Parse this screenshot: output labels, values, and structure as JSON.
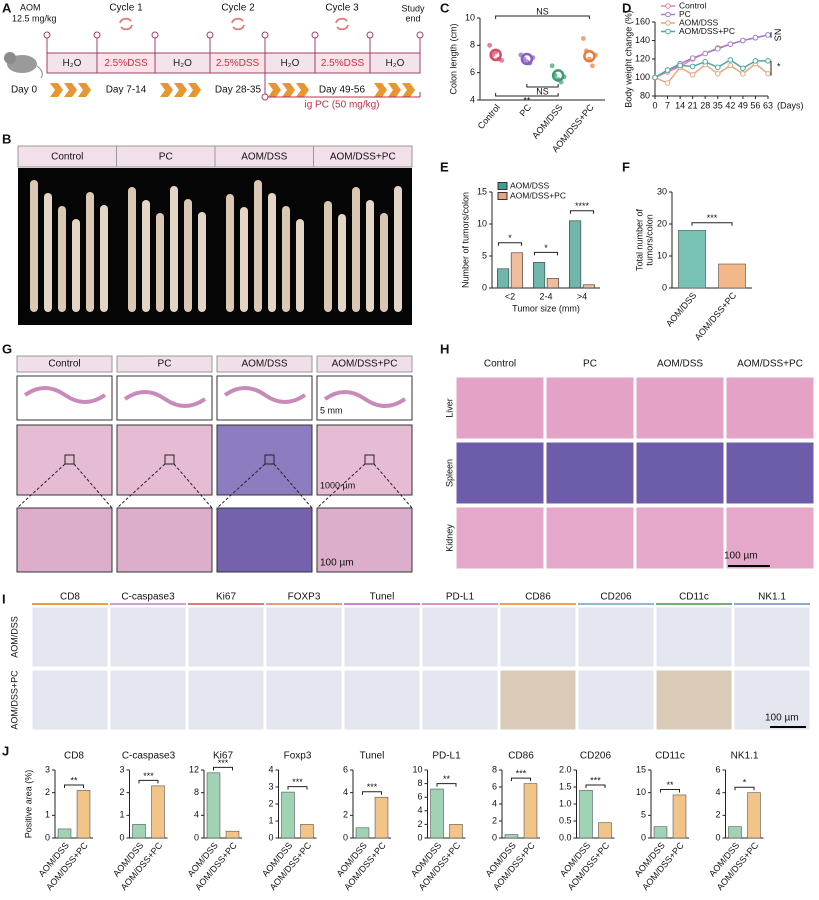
{
  "panel_labels": [
    "A",
    "B",
    "C",
    "D",
    "E",
    "F",
    "G",
    "H",
    "I",
    "J"
  ],
  "panel_A": {
    "aom": "AOM",
    "dose": "12.5 mg/kg",
    "day0": "Day 0",
    "cycles": [
      "Cycle 1",
      "Cycle 2",
      "Cycle 3"
    ],
    "study_end": [
      "Study",
      "end"
    ],
    "segments": [
      "H₂O",
      "2.5%DSS",
      "H₂O",
      "2.5%DSS",
      "H₂O",
      "2.5%DSS",
      "H₂O"
    ],
    "days": [
      "Day 7-14",
      "Day 28-35",
      "Day 49-56"
    ],
    "treatment": "ig PC (50 mg/kg)"
  },
  "panel_B": {
    "columns": [
      "Control",
      "PC",
      "AOM/DSS",
      "AOM/DSS+PC"
    ]
  },
  "panel_G": {
    "columns": [
      "Control",
      "PC",
      "AOM/DSS",
      "AOM/DSS+PC"
    ],
    "scale_bars": [
      "5 mm",
      "1000 µm",
      "100 µm"
    ]
  },
  "panel_H": {
    "columns": [
      "Control",
      "PC",
      "AOM/DSS",
      "AOM/DSS+PC"
    ],
    "rows": [
      "Liver",
      "Spleen",
      "Kidney"
    ],
    "scale_bar": "100 µm"
  },
  "panel_I": {
    "columns": [
      "CD8",
      "C-caspase3",
      "Ki67",
      "FOXP3",
      "Tunel",
      "PD-L1",
      "CD86",
      "CD206",
      "CD11c",
      "NK1.1"
    ],
    "rows": [
      "AOM/DSS",
      "AOM/DSS+PC"
    ],
    "scale_bar": "100 µm"
  },
  "chart_data": [
    {
      "type": "strip",
      "ylabel": "Colon length (cm)",
      "categories": [
        "Control",
        "PC",
        "AOM/DSS",
        "AOM/DSS+PC"
      ],
      "colors": [
        "#d64a6a",
        "#8a5ac8",
        "#3a9e6e",
        "#e87a3a"
      ],
      "values": [
        7.3,
        7.0,
        5.8,
        7.2
      ],
      "points": [
        [
          8.0,
          7.3,
          7.5,
          7.0,
          6.9
        ],
        [
          7.3,
          7.0,
          6.8,
          6.7,
          7.1
        ],
        [
          6.5,
          5.8,
          5.5,
          5.3,
          5.7
        ],
        [
          8.5,
          7.6,
          7.0,
          6.5,
          7.3
        ]
      ],
      "ylim": [
        4,
        10
      ],
      "yticks": [
        4,
        6,
        8,
        10
      ],
      "annotations": [
        "NS",
        "NS",
        "**"
      ]
    },
    {
      "type": "line",
      "ylabel": "Body weight change (%)",
      "xlabel": "(Days)",
      "x": [
        0,
        7,
        14,
        21,
        28,
        35,
        42,
        49,
        56,
        63
      ],
      "xlim": [
        0,
        63
      ],
      "xticks": [
        0,
        7,
        14,
        21,
        28,
        35,
        42,
        49,
        56,
        63
      ],
      "ylim": [
        80,
        160
      ],
      "yticks": [
        80,
        100,
        120,
        140,
        160
      ],
      "legend": "upper left",
      "series": [
        {
          "name": "Control",
          "color": "#e8849b",
          "values": [
            100,
            106,
            112,
            120,
            126,
            132,
            136,
            140,
            143,
            146
          ]
        },
        {
          "name": "PC",
          "color": "#a27fd6",
          "values": [
            100,
            108,
            115,
            121,
            126,
            131,
            136,
            140,
            143,
            146
          ]
        },
        {
          "name": "AOM/DSS",
          "color": "#e8a77e",
          "values": [
            100,
            94,
            111,
            103,
            114,
            104,
            113,
            104,
            115,
            104
          ]
        },
        {
          "name": "AOM/DSS+PC",
          "color": "#4fa8a3",
          "values": [
            100,
            108,
            113,
            112,
            117,
            111,
            119,
            110,
            118,
            118
          ]
        }
      ],
      "annotations": [
        "NS",
        "*"
      ]
    },
    {
      "type": "bar",
      "ylabel": "Number of tumors/colon",
      "xlabel": "Tumor size (mm)",
      "categories": [
        "<2",
        "2-4",
        ">4"
      ],
      "legend": "upper left",
      "series": [
        {
          "name": "AOM/DSS",
          "color": "#3f9e8f",
          "values": [
            3,
            4,
            10.5
          ]
        },
        {
          "name": "AOM/DSS+PC",
          "color": "#eaa57c",
          "values": [
            5.5,
            1.5,
            0.5
          ]
        }
      ],
      "ylim": [
        0,
        15
      ],
      "yticks": [
        0,
        5,
        10,
        15
      ],
      "significance": [
        "*",
        "*",
        "****"
      ]
    },
    {
      "type": "bar",
      "ylabel": [
        "Total number of",
        "tumors/colon"
      ],
      "categories": [
        "AOM/DSS",
        "AOM/DSS+PC"
      ],
      "colors": [
        "#78c2b4",
        "#f2b889"
      ],
      "values": [
        18,
        7.5
      ],
      "ylim": [
        0,
        30
      ],
      "yticks": [
        0,
        10,
        20,
        30
      ],
      "significance": "***"
    },
    {
      "type": "bar",
      "title": "CD8",
      "ylabel": "Positive area (%)",
      "categories": [
        "AOM/DSS",
        "AOM/DSS+PC"
      ],
      "colors": [
        "#9fd3b4",
        "#f3c487"
      ],
      "values": [
        0.4,
        2.1
      ],
      "ylim": [
        0,
        3
      ],
      "yticks": [
        0,
        1,
        2,
        3
      ],
      "significance": "**"
    },
    {
      "type": "bar",
      "title": "C-caspase3",
      "categories": [
        "AOM/DSS",
        "AOM/DSS+PC"
      ],
      "colors": [
        "#9fd3b4",
        "#f3c487"
      ],
      "values": [
        0.6,
        2.3
      ],
      "ylim": [
        0,
        3
      ],
      "yticks": [
        0,
        1,
        2,
        3
      ],
      "significance": "***"
    },
    {
      "type": "bar",
      "title": "Ki67",
      "categories": [
        "AOM/DSS",
        "AOM/DSS+PC"
      ],
      "colors": [
        "#9fd3b4",
        "#f3c487"
      ],
      "values": [
        11.5,
        1.2
      ],
      "ylim": [
        0,
        12
      ],
      "yticks": [
        0,
        4,
        8,
        12
      ],
      "significance": "***"
    },
    {
      "type": "bar",
      "title": "Foxp3",
      "categories": [
        "AOM/DSS",
        "AOM/DSS+PC"
      ],
      "colors": [
        "#9fd3b4",
        "#f3c487"
      ],
      "values": [
        2.7,
        0.8
      ],
      "ylim": [
        0,
        4
      ],
      "yticks": [
        0,
        1,
        2,
        3,
        4
      ],
      "significance": "***"
    },
    {
      "type": "bar",
      "title": "Tunel",
      "categories": [
        "AOM/DSS",
        "AOM/DSS+PC"
      ],
      "colors": [
        "#9fd3b4",
        "#f3c487"
      ],
      "values": [
        0.9,
        3.6
      ],
      "ylim": [
        0,
        6
      ],
      "yticks": [
        0,
        2,
        4,
        6
      ],
      "significance": "***"
    },
    {
      "type": "bar",
      "title": "PD-L1",
      "categories": [
        "AOM/DSS",
        "AOM/DSS+PC"
      ],
      "colors": [
        "#9fd3b4",
        "#f3c487"
      ],
      "values": [
        7.2,
        2.0
      ],
      "ylim": [
        0,
        10
      ],
      "yticks": [
        0,
        2,
        4,
        6,
        8,
        10
      ],
      "significance": "**"
    },
    {
      "type": "bar",
      "title": "CD86",
      "categories": [
        "AOM/DSS",
        "AOM/DSS+PC"
      ],
      "colors": [
        "#9fd3b4",
        "#f3c487"
      ],
      "values": [
        0.4,
        6.4
      ],
      "ylim": [
        0,
        8
      ],
      "yticks": [
        0,
        2,
        4,
        6,
        8
      ],
      "significance": "***"
    },
    {
      "type": "bar",
      "title": "CD206",
      "categories": [
        "AOM/DSS",
        "AOM/DSS+PC"
      ],
      "colors": [
        "#9fd3b4",
        "#f3c487"
      ],
      "values": [
        1.4,
        0.45
      ],
      "ylim": [
        0,
        2
      ],
      "yticks": [
        {
          "value": 0,
          "label": "0.0"
        },
        {
          "value": 0.5,
          "label": "0.5"
        },
        {
          "value": 1,
          "label": "1.0"
        },
        {
          "value": 1.5,
          "label": "1.5"
        },
        {
          "value": 2,
          "label": "2.0"
        }
      ],
      "significance": "***"
    },
    {
      "type": "bar",
      "title": "CD11c",
      "categories": [
        "AOM/DSS",
        "AOM/DSS+PC"
      ],
      "colors": [
        "#9fd3b4",
        "#f3c487"
      ],
      "values": [
        2.5,
        9.5
      ],
      "ylim": [
        0,
        15
      ],
      "yticks": [
        0,
        5,
        10,
        15
      ],
      "significance": "**"
    },
    {
      "type": "bar",
      "title": "NK1.1",
      "categories": [
        "AOM/DSS",
        "AOM/DSS+PC"
      ],
      "colors": [
        "#9fd3b4",
        "#f3c487"
      ],
      "values": [
        1.0,
        4.0
      ],
      "ylim": [
        0,
        6
      ],
      "yticks": [
        0,
        2,
        4,
        6
      ],
      "significance": "*"
    }
  ]
}
